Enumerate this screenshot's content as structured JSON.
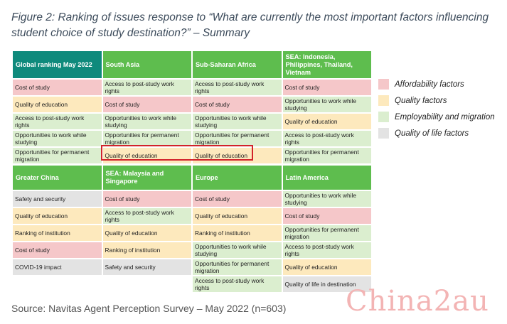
{
  "title": "Figure 2: Ranking of issues response to “What are currently the most important factors influencing student choice of study destination?” – Summary",
  "table_top": {
    "headers": [
      "Global ranking May 2022",
      "South Asia",
      "Sub-Saharan Africa",
      "SEA: Indonesia, Philippines, Thailand, Vietnam"
    ],
    "rows": [
      [
        "Cost of study",
        "Access to post-study work rights",
        "Access to post-study work rights",
        "Cost of study"
      ],
      [
        "Quality of education",
        "Cost of study",
        "Cost of study",
        "Opportunities to work while studying"
      ],
      [
        "Access to post-study work rights",
        "Opportunities to work while studying",
        "Opportunities to work while studying",
        "Quality of education"
      ],
      [
        "Opportunities to work while studying",
        "Opportunities for permanent migration",
        "Opportunities for permanent migration",
        "Access to post-study work rights"
      ],
      [
        "Opportunities for permanent migration",
        "Quality of education",
        "Quality of education",
        "Opportunities for permanent migration"
      ]
    ],
    "categories": [
      [
        "afford",
        "employ",
        "employ",
        "afford"
      ],
      [
        "quality",
        "afford",
        "afford",
        "employ"
      ],
      [
        "employ",
        "employ",
        "employ",
        "quality"
      ],
      [
        "employ",
        "employ",
        "employ",
        "employ"
      ],
      [
        "employ",
        "quality",
        "quality",
        "employ"
      ]
    ]
  },
  "table_bottom": {
    "headers": [
      "Greater China",
      "SEA: Malaysia and Singapore",
      "Europe",
      "Latin America"
    ],
    "rows": [
      [
        "Safety and security",
        "Cost of study",
        "Cost of study",
        "Opportunities to work while studying"
      ],
      [
        "Quality of education",
        "Access to post-study work rights",
        "Quality of education",
        "Cost of study"
      ],
      [
        "Ranking of institution",
        "Quality of education",
        "Ranking of institution",
        "Opportunities for permanent migration"
      ],
      [
        "Cost of study",
        "Ranking of institution",
        "Opportunities to work while studying",
        "Access to post-study work rights"
      ],
      [
        "COVID-19 impact",
        "Safety and security",
        "Opportunities for permanent migration",
        "Quality of education"
      ],
      [
        "",
        "",
        "Access to post-study work rights",
        "Quality of life in destination"
      ]
    ],
    "categories": [
      [
        "life",
        "afford",
        "afford",
        "employ"
      ],
      [
        "quality",
        "employ",
        "quality",
        "afford"
      ],
      [
        "quality",
        "quality",
        "quality",
        "employ"
      ],
      [
        "afford",
        "quality",
        "employ",
        "employ"
      ],
      [
        "life",
        "life",
        "employ",
        "quality"
      ],
      [
        "empty",
        "empty",
        "employ",
        "life"
      ]
    ]
  },
  "legend": [
    {
      "label": "Affordability factors",
      "color": "#f5c7c9"
    },
    {
      "label": "Quality factors",
      "color": "#fde9bd"
    },
    {
      "label": "Employability and migration",
      "color": "#dbeecf"
    },
    {
      "label": "Quality of life factors",
      "color": "#e3e3e3"
    }
  ],
  "source": "Source: Navitas Agent Perception Survey – May 2022 (n=603)",
  "watermark": "China2au"
}
